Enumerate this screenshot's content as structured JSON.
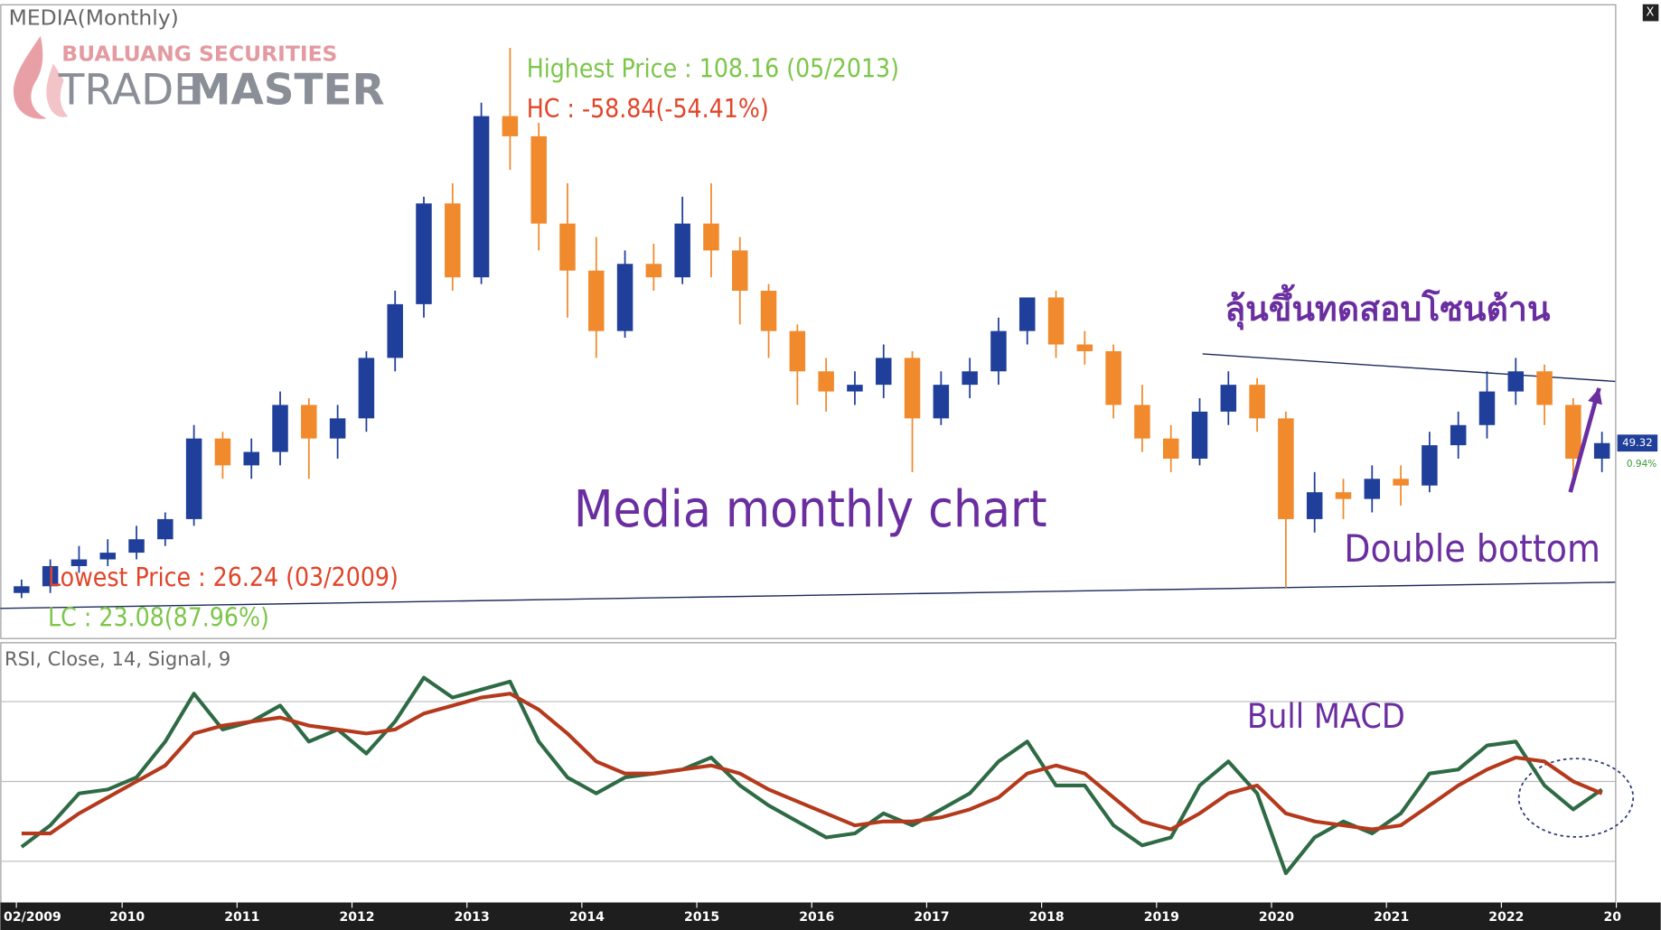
{
  "chart_data": {
    "type": "candlestick",
    "title": "MEDIA(Monthly)",
    "logo": {
      "line1": "BUALUANG SECURITIES",
      "word1": "TRADE",
      "word2": "MASTER"
    },
    "x": [
      2009.125,
      2009.375,
      2009.625,
      2009.875,
      2010.125,
      2010.375,
      2010.625,
      2010.875,
      2011.125,
      2011.375,
      2011.625,
      2011.875,
      2012.125,
      2012.375,
      2012.625,
      2012.875,
      2013.125,
      2013.375,
      2013.625,
      2013.875,
      2014.125,
      2014.375,
      2014.625,
      2014.875,
      2015.125,
      2015.375,
      2015.625,
      2015.875,
      2016.125,
      2016.375,
      2016.625,
      2016.875,
      2017.125,
      2017.375,
      2017.625,
      2017.875,
      2018.125,
      2018.375,
      2018.625,
      2018.875,
      2019.125,
      2019.375,
      2019.625,
      2019.875,
      2020.125,
      2020.375,
      2020.625,
      2020.875,
      2021.125,
      2021.375,
      2021.625,
      2021.875,
      2022.125,
      2022.375,
      2022.625,
      2022.875
    ],
    "open": [
      27,
      28,
      31,
      32,
      33,
      35,
      38,
      50,
      46,
      48,
      55,
      50,
      53,
      62,
      70,
      85,
      74,
      98,
      95,
      82,
      75,
      66,
      76,
      74,
      82,
      78,
      72,
      66,
      60,
      57,
      58,
      62,
      53,
      58,
      60,
      66,
      71,
      64,
      63,
      55,
      50,
      47,
      54,
      58,
      53,
      38,
      42,
      41,
      44,
      43,
      49,
      52,
      57,
      60,
      55,
      47
    ],
    "high": [
      29,
      32,
      34,
      35,
      37,
      39,
      52,
      51,
      50,
      57,
      56,
      55,
      63,
      72,
      86,
      88,
      100,
      108.16,
      97,
      88,
      80,
      78,
      79,
      86,
      88,
      80,
      73,
      67,
      62,
      60,
      64,
      63,
      60,
      62,
      68,
      71,
      72,
      66,
      64,
      58,
      52,
      56,
      60,
      59,
      54,
      45,
      44,
      46,
      46,
      51,
      54,
      60,
      62,
      61,
      56,
      51
    ],
    "low": [
      26.24,
      27,
      30,
      31,
      32,
      34,
      37,
      44,
      44,
      46,
      44,
      47,
      51,
      60,
      68,
      72,
      73,
      90,
      78,
      68,
      62,
      65,
      72,
      73,
      74,
      67,
      62,
      55,
      54,
      55,
      56,
      45,
      52,
      56,
      58,
      64,
      62,
      61,
      53,
      48,
      45,
      46,
      52,
      51,
      27.8,
      36,
      38,
      39,
      40,
      42,
      47,
      50,
      55,
      52,
      44,
      45
    ],
    "close": [
      28,
      31,
      32,
      33,
      35,
      38,
      50,
      46,
      48,
      55,
      50,
      53,
      62,
      70,
      85,
      74,
      98,
      95,
      82,
      75,
      66,
      76,
      74,
      82,
      78,
      72,
      66,
      60,
      57,
      58,
      62,
      53,
      58,
      60,
      66,
      71,
      64,
      63,
      55,
      50,
      47,
      54,
      58,
      53,
      38,
      42,
      41,
      44,
      43,
      49,
      52,
      57,
      60,
      55,
      47,
      49.32
    ],
    "up_color": "#1f3f9a",
    "down_color": "#f08a2c",
    "xlim": [
      2008.94,
      2022.99
    ],
    "ylim": [
      20.3,
      114.5
    ],
    "xticks": [
      {
        "value": 2009.08,
        "label": "02/2009"
      },
      2010,
      2011,
      2012,
      2013,
      2014,
      2015,
      2016,
      2017,
      2018,
      2019,
      2020,
      2021,
      2022,
      {
        "value": 2023,
        "label": "20"
      }
    ],
    "trendlines": [
      {
        "color": "#1c2a5c",
        "x": [
          2019.4,
          2022.99
        ],
        "y": [
          62.6,
          58.5
        ]
      },
      {
        "color": "#1c2a5c",
        "x": [
          2008.94,
          2022.99
        ],
        "y": [
          24.7,
          28.6
        ]
      }
    ],
    "arrow": {
      "color": "#6a2ea0",
      "x": [
        2022.6,
        2022.85
      ],
      "y": [
        42,
        57.5
      ]
    },
    "last_price": 49.32,
    "last_change": "0.94%",
    "annotations": {
      "highest": "Highest Price : 108.16 (05/2013)",
      "hc": "HC : -58.84(-54.41%)",
      "lowest": "Lowest Price : 26.24 (03/2009)",
      "lc": "LC : 23.08(87.96%)",
      "caption": "Media monthly chart",
      "thai_note": "ลุ้นขึ้นทดสอบโซนต้าน",
      "pattern_note": "Double bottom"
    },
    "rsi": {
      "type": "line",
      "title": "RSI, Close, 14, Signal, 9",
      "note": "Bull MACD",
      "ylim": [
        19.7,
        84.6
      ],
      "hlines": [
        30,
        50,
        70
      ],
      "series": [
        {
          "color": "#2e6b45",
          "values": [
            33.6,
            39,
            47,
            48,
            51,
            60,
            72,
            63,
            65,
            69,
            60,
            63,
            57,
            65,
            76,
            71,
            73,
            75,
            60,
            51,
            47,
            51,
            52,
            53,
            56,
            49,
            44,
            40,
            36,
            37,
            42,
            39,
            43,
            47,
            55,
            60,
            49,
            49,
            39,
            34,
            36,
            49,
            55,
            47,
            27,
            36,
            40,
            37,
            42,
            52,
            53,
            59,
            60,
            49,
            43,
            48
          ]
        },
        {
          "color": "#b5391c",
          "values": [
            37,
            37,
            42,
            46,
            50,
            54,
            62,
            64,
            65,
            66,
            64,
            63,
            62,
            63,
            67,
            69,
            71,
            72,
            68,
            62,
            55,
            52,
            52,
            53,
            54,
            52,
            48,
            45,
            42,
            39,
            40,
            40,
            41,
            43,
            46,
            52,
            54,
            52,
            46,
            40,
            38,
            42,
            47,
            49,
            42,
            40,
            39,
            38,
            39,
            44,
            49,
            53,
            56,
            55,
            50,
            47
          ]
        }
      ]
    }
  }
}
